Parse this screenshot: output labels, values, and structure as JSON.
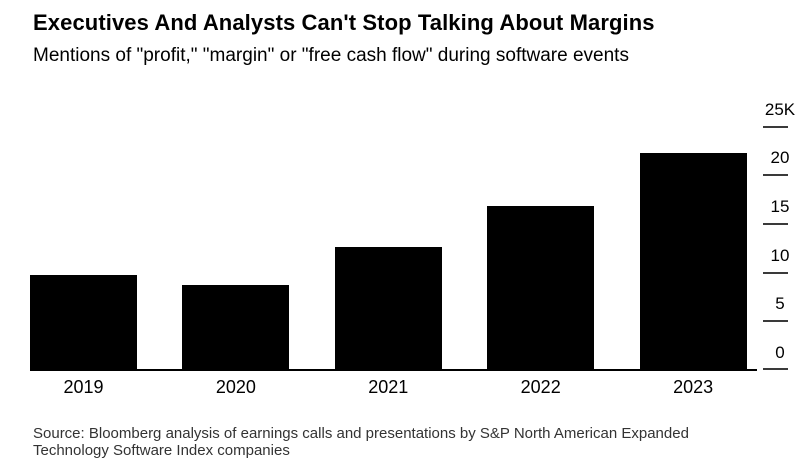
{
  "chart_data": {
    "type": "bar",
    "title": "Executives And Analysts Can't Stop Talking About Margins",
    "subtitle": "Mentions of \"profit,\" \"margin\" or \"free cash flow\" during software events",
    "source": "Source: Bloomberg analysis of earnings calls and presentations by S&P North American Expanded Technology Software Index companies",
    "categories": [
      "2019",
      "2020",
      "2021",
      "2022",
      "2023"
    ],
    "values": [
      9.8,
      8.7,
      12.6,
      16.9,
      22.3
    ],
    "series_name": "Mentions of profit, margin or free cash flow (thousands)",
    "unit": "thousands of mentions",
    "xlabel": "",
    "ylabel": "",
    "y_axis": {
      "side": "right",
      "ticks": [
        0,
        5,
        10,
        15,
        20,
        25
      ],
      "tick_labels": [
        "0",
        "5",
        "10",
        "15",
        "20",
        "25K"
      ],
      "ylim": [
        0,
        25
      ]
    },
    "grid": "off",
    "legend": "none",
    "colors": {
      "bar": "#000000",
      "baseline": "#000000",
      "tick_dash": "#3a3a3a",
      "title_text": "#000000",
      "subtitle_text": "#000000",
      "axis_text": "#000000",
      "source_text": "#333333",
      "background": "#ffffff"
    }
  }
}
